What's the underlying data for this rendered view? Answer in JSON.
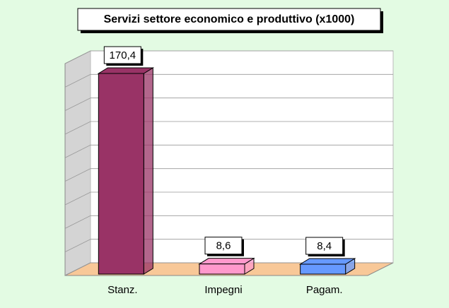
{
  "chart_data": {
    "type": "bar3d",
    "title": "Servizi settore economico e produttivo (x1000)",
    "categories": [
      "Stanz.",
      "Impegni",
      "Pagam."
    ],
    "values": [
      170.4,
      8.6,
      8.4
    ],
    "value_labels": [
      "170,4",
      "8,6",
      "8,4"
    ],
    "colors": [
      "#993366",
      "#ff99cc",
      "#6699ff"
    ],
    "ylim": [
      0,
      180
    ],
    "yticks": [
      0,
      20,
      40,
      60,
      80,
      100,
      120,
      140,
      160,
      180
    ],
    "grid": true
  }
}
